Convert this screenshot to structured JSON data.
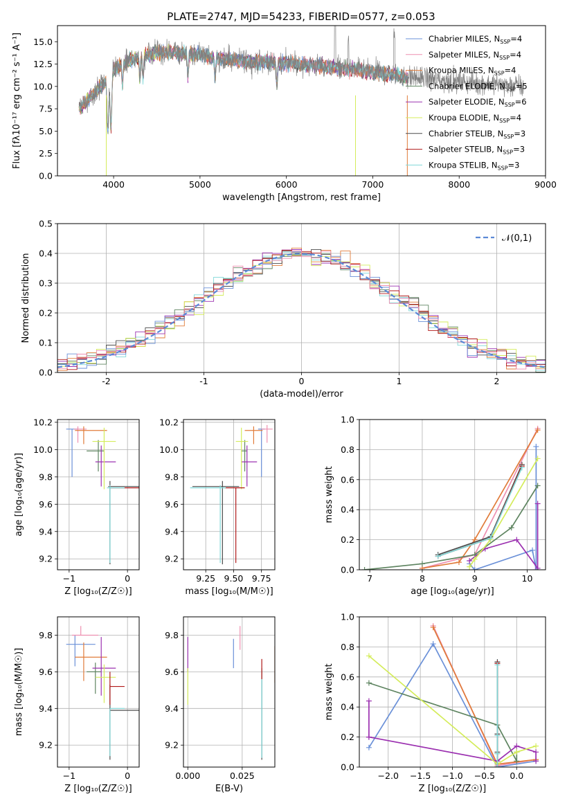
{
  "figure_title": "PLATE=2747, MJD=54233, FIBERID=0577, z=0.053",
  "models": [
    {
      "label": "Chabrier MILES, N<sub>SSP</sub>=4",
      "text": "Chabrier MILES, NSSP=4",
      "color": "#6a90d8"
    },
    {
      "label": "Salpeter MILES",
      "text": "Salpeter MILES, NSSP=4",
      "color": "#ee8fb0"
    },
    {
      "label": "Kroupa MILES",
      "text": "Kroupa MILES, NSSP=4",
      "color": "#e07b39"
    },
    {
      "label": "Chabrier ELODIE",
      "text": "Chabrier ELODIE, NSSP=5",
      "color": "#5e8460"
    },
    {
      "label": "Salpeter ELODIE",
      "text": "Salpeter ELODIE, NSSP=6",
      "color": "#9b30b0"
    },
    {
      "label": "Kroupa ELODIE",
      "text": "Kroupa ELODIE, NSSP=4",
      "color": "#d4ec5a"
    },
    {
      "label": "Chabrier STELIB",
      "text": "Chabrier STELIB, NSSP=3",
      "color": "#4a4a4a"
    },
    {
      "label": "Salpeter STELIB",
      "text": "Salpeter STELIB, NSSP=3",
      "color": "#b01818"
    },
    {
      "label": "Kroupa STELIB",
      "text": "Kroupa STELIB, NSSP=3",
      "color": "#7fd8d8"
    }
  ],
  "chart_data": [
    {
      "id": "spectrum",
      "type": "line",
      "xlabel": "wavelength [Angstrom, rest frame]",
      "ylabel": "Flux [fλ10⁻¹⁷ erg cm⁻² s⁻¹ A⁻¹]",
      "xlim": [
        3350,
        9000
      ],
      "ylim": [
        0,
        16.8
      ],
      "xticks": [
        4000,
        5000,
        6000,
        7000,
        8000,
        9000
      ],
      "yticks": [
        0.0,
        2.5,
        5.0,
        7.5,
        10.0,
        12.5,
        15.0
      ],
      "ytick_labels": [
        "0.0",
        "2.5",
        "5.0",
        "7.5",
        "10.0",
        "12.5",
        "15.0"
      ],
      "continuum": {
        "x": [
          3600,
          3700,
          3800,
          3900,
          4000,
          4200,
          4400,
          4600,
          4800,
          5000,
          5200,
          5500,
          6000,
          6500,
          7000,
          7500,
          8000,
          8500,
          8750
        ],
        "y": [
          7.5,
          8.5,
          9.5,
          10.5,
          12.0,
          13.0,
          13.6,
          13.8,
          13.7,
          13.5,
          13.2,
          12.8,
          12.6,
          12.2,
          11.6,
          11.0,
          10.5,
          10.2,
          10.0
        ]
      },
      "absorption_lines": [
        3934,
        3969,
        4102,
        4304,
        4341,
        4861,
        5175,
        5890,
        6563
      ],
      "data_range": [
        3600,
        8750
      ],
      "model_range": [
        3600,
        7400
      ],
      "grid": false
    },
    {
      "id": "residuals",
      "type": "histogram",
      "xlabel": "(data-model)/error",
      "ylabel": "Normed distribution",
      "xlim": [
        -2.5,
        2.5
      ],
      "ylim": [
        0,
        0.5
      ],
      "xticks": [
        -2,
        -1,
        0,
        1,
        2
      ],
      "yticks": [
        0.0,
        0.1,
        0.2,
        0.3,
        0.4,
        0.5
      ],
      "ytick_labels": [
        "0.0",
        "0.1",
        "0.2",
        "0.3",
        "0.4",
        "0.5"
      ],
      "bin_width": 0.1,
      "reference": {
        "name": "𝒩(0,1)",
        "mean": 0,
        "sigma": 1,
        "color": "#5b8ad6"
      },
      "grid": true
    },
    {
      "id": "age_vs_Z",
      "type": "errorbar",
      "xlabel": "Z [log₁₀(Z/Z☉)]",
      "ylabel": "age  [log₁₀(age/yr)]",
      "xlim": [
        -1.2,
        0.2
      ],
      "ylim": [
        9.12,
        10.22
      ],
      "xticks": [
        -1,
        0
      ],
      "xtick_labels": [
        "−1",
        "0"
      ],
      "yticks": [
        9.2,
        9.4,
        9.6,
        9.8,
        10.0,
        10.2
      ],
      "ytick_labels": [
        "9.2",
        "9.4",
        "9.6",
        "9.8",
        "10.0",
        "10.2"
      ],
      "points": [
        {
          "model": 0,
          "x": -0.95,
          "xerr": [
            0.1,
            0.1
          ],
          "y": 10.15,
          "yerr": [
            0.35,
            0.0
          ]
        },
        {
          "model": 1,
          "x": -0.85,
          "xerr": [
            0.07,
            0.15
          ],
          "y": 10.15,
          "yerr": [
            0.1,
            0.02
          ]
        },
        {
          "model": 2,
          "x": -0.75,
          "xerr": [
            0.15,
            0.4
          ],
          "y": 10.14,
          "yerr": [
            0.1,
            0.03
          ]
        },
        {
          "model": 3,
          "x": -0.5,
          "xerr": [
            0.2,
            0.1
          ],
          "y": 9.99,
          "yerr": [
            0.15,
            0.08
          ]
        },
        {
          "model": 4,
          "x": -0.45,
          "xerr": [
            0.1,
            0.25
          ],
          "y": 9.91,
          "yerr": [
            0.18,
            0.12
          ]
        },
        {
          "model": 5,
          "x": -0.4,
          "xerr": [
            0.2,
            0.2
          ],
          "y": 10.06,
          "yerr": [
            0.35,
            0.1
          ]
        },
        {
          "model": 6,
          "x": -0.3,
          "xerr": [
            0.03,
            0.5
          ],
          "y": 9.73,
          "yerr": [
            0.57,
            0.04
          ]
        },
        {
          "model": 7,
          "x": -0.3,
          "xerr": [
            0.0,
            0.5
          ],
          "y": 9.72,
          "yerr": [
            0.0,
            0.01
          ]
        },
        {
          "model": 8,
          "x": -0.3,
          "xerr": [
            0.05,
            0.25
          ],
          "y": 9.72,
          "yerr": [
            0.55,
            0.02
          ]
        }
      ],
      "grid": true
    },
    {
      "id": "age_vs_mass",
      "type": "errorbar",
      "xlabel": "mass [log₁₀(M/M☉)]",
      "xlim": [
        9.05,
        9.87
      ],
      "ylim": [
        9.12,
        10.22
      ],
      "xticks": [
        9.25,
        9.5,
        9.75
      ],
      "xtick_labels": [
        "9.25",
        "9.50",
        "9.75"
      ],
      "yticks": [
        9.2,
        9.4,
        9.6,
        9.8,
        10.0,
        10.2
      ],
      "ytick_labels": [
        "9.2",
        "9.4",
        "9.6",
        "9.8",
        "10.0",
        "10.2"
      ],
      "points": [
        {
          "model": 0,
          "x": 9.75,
          "xerr": [
            0.03,
            0.03
          ],
          "y": 10.15,
          "yerr": [
            0.35,
            0.0
          ]
        },
        {
          "model": 1,
          "x": 9.8,
          "xerr": [
            0.05,
            0.05
          ],
          "y": 10.15,
          "yerr": [
            0.1,
            0.03
          ]
        },
        {
          "model": 2,
          "x": 9.68,
          "xerr": [
            0.08,
            0.08
          ],
          "y": 10.14,
          "yerr": [
            0.1,
            0.03
          ]
        },
        {
          "model": 3,
          "x": 9.6,
          "xerr": [
            0.03,
            0.02
          ],
          "y": 9.99,
          "yerr": [
            0.15,
            0.08
          ]
        },
        {
          "model": 4,
          "x": 9.62,
          "xerr": [
            0.05,
            0.09
          ],
          "y": 9.91,
          "yerr": [
            0.18,
            0.12
          ]
        },
        {
          "model": 5,
          "x": 9.57,
          "xerr": [
            0.05,
            0.06
          ],
          "y": 10.06,
          "yerr": [
            0.35,
            0.1
          ]
        },
        {
          "model": 6,
          "x": 9.4,
          "xerr": [
            0.27,
            0.15
          ],
          "y": 9.73,
          "yerr": [
            0.57,
            0.04
          ]
        },
        {
          "model": 7,
          "x": 9.52,
          "xerr": [
            0.1,
            0.08
          ],
          "y": 9.72,
          "yerr": [
            0.55,
            0.0
          ]
        },
        {
          "model": 8,
          "x": 9.38,
          "xerr": [
            0.27,
            0.05
          ],
          "y": 9.72,
          "yerr": [
            0.55,
            0.02
          ]
        }
      ],
      "grid": true
    },
    {
      "id": "weight_vs_age",
      "type": "line",
      "xlabel": "age  [log₁₀(age/yr)]",
      "ylabel": "mass weight",
      "xlim": [
        6.8,
        10.35
      ],
      "ylim": [
        0,
        1.0
      ],
      "xticks": [
        7,
        8,
        9,
        10
      ],
      "yticks": [
        0.0,
        0.2,
        0.4,
        0.6,
        0.8,
        1.0
      ],
      "ytick_labels": [
        "0.0",
        "0.2",
        "0.4",
        "0.6",
        "0.8",
        "1.0"
      ],
      "series": [
        {
          "model": 0,
          "x": [
            8.9,
            9.0,
            10.1,
            10.17,
            10.17
          ],
          "y": [
            0.04,
            0.0,
            0.13,
            0.0,
            0.82
          ]
        },
        {
          "model": 1,
          "x": [
            8.0,
            9.0,
            10.2
          ],
          "y": [
            0.01,
            0.1,
            0.94
          ]
        },
        {
          "model": 2,
          "x": [
            8.0,
            8.7,
            9.0,
            10.2
          ],
          "y": [
            0.01,
            0.05,
            0.2,
            0.93
          ]
        },
        {
          "model": 3,
          "x": [
            6.9,
            8.0,
            9.0,
            9.7,
            10.2
          ],
          "y": [
            0.0,
            0.04,
            0.1,
            0.28,
            0.56
          ]
        },
        {
          "model": 4,
          "x": [
            8.9,
            9.2,
            9.8,
            10.2,
            10.2
          ],
          "y": [
            0.06,
            0.14,
            0.2,
            0.01,
            0.44
          ]
        },
        {
          "model": 5,
          "x": [
            8.9,
            9.0,
            9.3,
            10.2
          ],
          "y": [
            0.02,
            0.07,
            0.2,
            0.74
          ]
        },
        {
          "model": 6,
          "x": [
            8.3,
            9.3,
            9.9
          ],
          "y": [
            0.1,
            0.22,
            0.7
          ]
        },
        {
          "model": 7,
          "x": [
            8.3,
            9.3,
            9.9
          ],
          "y": [
            0.09,
            0.21,
            0.69
          ]
        },
        {
          "model": 8,
          "x": [
            8.3,
            9.3,
            9.9
          ],
          "y": [
            0.09,
            0.21,
            0.68
          ]
        }
      ],
      "grid": true
    },
    {
      "id": "mass_vs_Z",
      "type": "errorbar",
      "xlabel": "Z [log₁₀(Z/Z☉)]",
      "ylabel": "mass [log₁₀(M/M☉)]",
      "xlim": [
        -1.2,
        0.2
      ],
      "ylim": [
        9.08,
        9.9
      ],
      "xticks": [
        -1,
        0
      ],
      "xtick_labels": [
        "−1",
        "0"
      ],
      "yticks": [
        9.2,
        9.4,
        9.6,
        9.8
      ],
      "ytick_labels": [
        "9.2",
        "9.4",
        "9.6",
        "9.8"
      ],
      "points": [
        {
          "model": 0,
          "x": -0.9,
          "xerr": [
            0.15,
            0.35
          ],
          "y": 9.75,
          "yerr": [
            0.12,
            0.05
          ]
        },
        {
          "model": 1,
          "x": -0.8,
          "xerr": [
            0.15,
            0.3
          ],
          "y": 9.8,
          "yerr": [
            0.0,
            0.05
          ]
        },
        {
          "model": 2,
          "x": -0.75,
          "xerr": [
            0.15,
            0.4
          ],
          "y": 9.68,
          "yerr": [
            0.13,
            0.08
          ]
        },
        {
          "model": 3,
          "x": -0.55,
          "xerr": [
            0.15,
            0.1
          ],
          "y": 9.6,
          "yerr": [
            0.12,
            0.05
          ]
        },
        {
          "model": 4,
          "x": -0.45,
          "xerr": [
            0.15,
            0.25
          ],
          "y": 9.62,
          "yerr": [
            0.15,
            0.17
          ]
        },
        {
          "model": 5,
          "x": -0.4,
          "xerr": [
            0.15,
            0.2
          ],
          "y": 9.57,
          "yerr": [
            0.14,
            0.07
          ]
        },
        {
          "model": 6,
          "x": -0.3,
          "xerr": [
            0.0,
            0.5
          ],
          "y": 9.39,
          "yerr": [
            0.27,
            0.14
          ]
        },
        {
          "model": 7,
          "x": -0.3,
          "xerr": [
            0.0,
            0.25
          ],
          "y": 9.52,
          "yerr": [
            0.1,
            0.08
          ]
        },
        {
          "model": 8,
          "x": -0.3,
          "xerr": [
            0.0,
            0.25
          ],
          "y": 9.4,
          "yerr": [
            0.26,
            0.0
          ]
        }
      ],
      "grid": true
    },
    {
      "id": "mass_vs_ebv",
      "type": "errorbar",
      "xlabel": "E(B-V)",
      "xlim": [
        -0.002,
        0.04
      ],
      "ylim": [
        9.08,
        9.9
      ],
      "xticks": [
        0.0,
        0.025
      ],
      "xtick_labels": [
        "0.000",
        "0.025"
      ],
      "yticks": [
        9.2,
        9.4,
        9.6,
        9.8
      ],
      "ytick_labels": [
        "9.2",
        "9.4",
        "9.6",
        "9.8"
      ],
      "points": [
        {
          "model": 0,
          "x": 0.021,
          "xerr": [
            0,
            0
          ],
          "y": 9.68,
          "yerr": [
            0.06,
            0.1
          ]
        },
        {
          "model": 1,
          "x": 0.024,
          "xerr": [
            0,
            0
          ],
          "y": 9.78,
          "yerr": [
            0.06,
            0.07
          ]
        },
        {
          "model": 2,
          "x": 0.04,
          "xerr": [
            0,
            0
          ],
          "y": 9.64,
          "yerr": [
            0.1,
            0.1
          ]
        },
        {
          "model": 3,
          "x": 0.034,
          "xerr": [
            0,
            0
          ],
          "y": 9.6,
          "yerr": [
            0.04,
            0.02
          ]
        },
        {
          "model": 4,
          "x": 0.0,
          "xerr": [
            0,
            0
          ],
          "y": 9.7,
          "yerr": [
            0.1,
            0.09
          ]
        },
        {
          "model": 5,
          "x": 0.0,
          "xerr": [
            0,
            0
          ],
          "y": 9.52,
          "yerr": [
            0.1,
            0.1
          ]
        },
        {
          "model": 6,
          "x": 0.034,
          "xerr": [
            0,
            0
          ],
          "y": 9.4,
          "yerr": [
            0.28,
            0.16
          ]
        },
        {
          "model": 7,
          "x": 0.034,
          "xerr": [
            0,
            0
          ],
          "y": 9.56,
          "yerr": [
            0.0,
            0.11
          ]
        },
        {
          "model": 8,
          "x": 0.034,
          "xerr": [
            0,
            0
          ],
          "y": 9.4,
          "yerr": [
            0.27,
            0.16
          ]
        }
      ],
      "grid": true
    },
    {
      "id": "weight_vs_Z",
      "type": "line",
      "xlabel": "Z [log₁₀(Z/Z☉)]",
      "ylabel": "mass weight",
      "xlim": [
        -2.45,
        0.45
      ],
      "ylim": [
        0,
        1.0
      ],
      "xticks": [
        -2.0,
        -1.5,
        -1.0,
        -0.5,
        0.0
      ],
      "xtick_labels": [
        "−2.0",
        "−1.5",
        "−1.0",
        "−0.5",
        "0.0"
      ],
      "yticks": [
        0.0,
        0.2,
        0.4,
        0.6,
        0.8,
        1.0
      ],
      "ytick_labels": [
        "0.0",
        "0.2",
        "0.4",
        "0.6",
        "0.8",
        "1.0"
      ],
      "series": [
        {
          "model": 0,
          "x": [
            -2.3,
            -1.3,
            -0.3,
            0.3
          ],
          "y": [
            0.13,
            0.82,
            0.0,
            0.04
          ]
        },
        {
          "model": 1,
          "x": [
            -1.3,
            -0.3,
            0.3
          ],
          "y": [
            0.94,
            0.01,
            0.05
          ]
        },
        {
          "model": 2,
          "x": [
            -1.3,
            -0.3,
            0.3
          ],
          "y": [
            0.93,
            0.02,
            0.05
          ]
        },
        {
          "model": 3,
          "x": [
            -2.3,
            -0.3,
            0.0,
            0.0
          ],
          "y": [
            0.56,
            0.28,
            0.04,
            0.1
          ]
        },
        {
          "model": 4,
          "x": [
            -2.3,
            -2.3,
            -2.3,
            -0.3,
            0.0,
            0.3,
            0.3
          ],
          "y": [
            0.44,
            0.2,
            0.2,
            0.04,
            0.14,
            0.1,
            0.04
          ]
        },
        {
          "model": 5,
          "x": [
            -2.3,
            -0.3,
            0.0,
            0.3
          ],
          "y": [
            0.74,
            0.02,
            0.1,
            0.14
          ]
        },
        {
          "model": 6,
          "x": [
            -0.3,
            -0.3,
            -0.3,
            -0.3
          ],
          "y": [
            0.7,
            0.22,
            0.1,
            0.0
          ]
        },
        {
          "model": 7,
          "x": [
            -0.3,
            -0.3,
            -0.3,
            -0.3
          ],
          "y": [
            0.69,
            0.21,
            0.09,
            0.0
          ]
        },
        {
          "model": 8,
          "x": [
            -0.3,
            -0.3,
            -0.3,
            -0.3
          ],
          "y": [
            0.68,
            0.21,
            0.09,
            0.0
          ]
        }
      ],
      "grid": true
    }
  ]
}
